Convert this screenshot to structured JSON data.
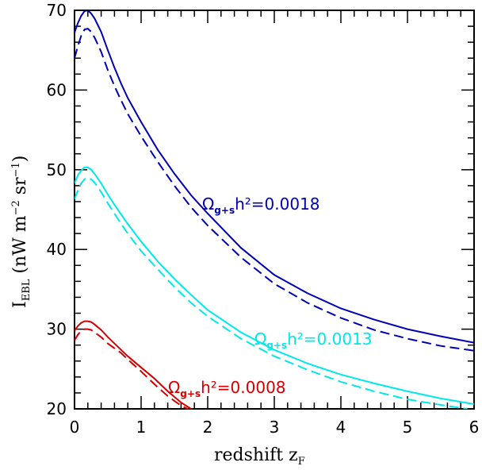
{
  "chart_data": {
    "type": "line",
    "xlabel": {
      "main": "redshift  z",
      "sub": "F"
    },
    "ylabel": {
      "main": "I",
      "sub": "EBL",
      "rest": "  (nW  m",
      "exp1": "−2",
      "mid": "  sr",
      "exp2": "−1",
      "end": ")"
    },
    "xlim": [
      0,
      6
    ],
    "ylim": [
      20,
      70
    ],
    "x_ticks": [
      "0",
      "1",
      "2",
      "3",
      "4",
      "5",
      "6"
    ],
    "y_ticks": [
      "20",
      "30",
      "40",
      "50",
      "60",
      "70"
    ],
    "x_tick_values": [
      0,
      1,
      2,
      3,
      4,
      5,
      6
    ],
    "y_tick_values": [
      20,
      30,
      40,
      50,
      60,
      70
    ],
    "grid": false,
    "series": [
      {
        "name": "Ωg+sh²=0.0018",
        "label_parts": {
          "omega": "Ω",
          "sub": "g+s",
          "rest": "h²=0.0018"
        },
        "color": "#0000b4",
        "solid": {
          "x": [
            0,
            0.05,
            0.1,
            0.15,
            0.2,
            0.25,
            0.3,
            0.4,
            0.5,
            0.6,
            0.7,
            0.8,
            1.0,
            1.25,
            1.5,
            1.75,
            2.0,
            2.5,
            3.0,
            3.5,
            4.0,
            4.5,
            5.0,
            5.5,
            6.0
          ],
          "y": [
            67.2,
            68.4,
            69.3,
            69.9,
            70.0,
            69.6,
            69.0,
            67.3,
            65.0,
            62.8,
            60.8,
            59.0,
            56.0,
            52.5,
            49.5,
            46.8,
            44.5,
            40.2,
            36.8,
            34.5,
            32.6,
            31.2,
            30.0,
            29.1,
            28.3
          ]
        },
        "dashed": {
          "x": [
            0,
            0.05,
            0.1,
            0.15,
            0.2,
            0.25,
            0.3,
            0.4,
            0.5,
            0.6,
            0.7,
            0.8,
            1.0,
            1.25,
            1.5,
            1.75,
            2.0,
            2.5,
            3.0,
            3.5,
            4.0,
            4.5,
            5.0,
            5.5,
            6.0
          ],
          "y": [
            64.0,
            65.5,
            66.8,
            67.6,
            67.7,
            67.3,
            66.6,
            64.8,
            62.5,
            60.5,
            58.7,
            57.0,
            54.2,
            51.0,
            48.0,
            45.3,
            43.0,
            39.0,
            35.7,
            33.3,
            31.4,
            29.9,
            28.8,
            27.9,
            27.3
          ]
        }
      },
      {
        "name": "Ωg+sh²=0.0013",
        "label_parts": {
          "omega": "Ω",
          "sub": "g+s",
          "rest": "h²=0.0013"
        },
        "color": "#00e8e8",
        "solid": {
          "x": [
            0,
            0.05,
            0.1,
            0.15,
            0.2,
            0.25,
            0.3,
            0.4,
            0.5,
            0.6,
            0.7,
            0.8,
            1.0,
            1.25,
            1.5,
            1.75,
            2.0,
            2.5,
            3.0,
            3.5,
            4.0,
            4.5,
            5.0,
            5.5,
            6.0
          ],
          "y": [
            48.3,
            49.3,
            49.9,
            50.3,
            50.3,
            50.0,
            49.5,
            48.3,
            46.9,
            45.6,
            44.4,
            43.2,
            41.0,
            38.5,
            36.3,
            34.3,
            32.4,
            29.6,
            27.4,
            25.7,
            24.3,
            23.2,
            22.2,
            21.3,
            20.6
          ]
        },
        "dashed": {
          "x": [
            0,
            0.05,
            0.1,
            0.15,
            0.2,
            0.25,
            0.3,
            0.4,
            0.5,
            0.6,
            0.7,
            0.8,
            1.0,
            1.25,
            1.5,
            1.75,
            2.0,
            2.5,
            3.0,
            3.5,
            4.0,
            4.5,
            5.0,
            5.5,
            5.9
          ],
          "y": [
            46.3,
            47.4,
            48.3,
            48.8,
            49.0,
            48.8,
            48.4,
            47.2,
            45.8,
            44.5,
            43.2,
            42.0,
            39.8,
            37.5,
            35.3,
            33.3,
            31.6,
            28.8,
            26.6,
            24.9,
            23.4,
            22.2,
            21.2,
            20.5,
            20.0
          ]
        }
      },
      {
        "name": "Ωg+sh²=0.0008",
        "label_parts": {
          "omega": "Ω",
          "sub": "g+s",
          "rest": "h²=0.0008"
        },
        "color": "#d40000",
        "solid": {
          "x": [
            0,
            0.05,
            0.1,
            0.15,
            0.2,
            0.25,
            0.3,
            0.4,
            0.5,
            0.6,
            0.7,
            0.8,
            1.0,
            1.2,
            1.4,
            1.6,
            1.75
          ],
          "y": [
            29.8,
            30.4,
            30.8,
            31.0,
            31.0,
            30.9,
            30.6,
            29.9,
            29.0,
            28.2,
            27.4,
            26.6,
            25.2,
            23.8,
            22.2,
            20.8,
            20.0
          ]
        },
        "dashed": {
          "x": [
            0,
            0.05,
            0.1,
            0.15,
            0.2,
            0.25,
            0.3,
            0.4,
            0.5,
            0.6,
            0.7,
            0.8,
            1.0,
            1.2,
            1.4,
            1.6,
            1.7
          ],
          "y": [
            28.6,
            29.3,
            29.8,
            30.0,
            30.0,
            29.9,
            29.6,
            29.0,
            28.2,
            27.6,
            27.0,
            26.2,
            24.7,
            23.1,
            21.6,
            20.4,
            20.0
          ]
        }
      }
    ]
  }
}
